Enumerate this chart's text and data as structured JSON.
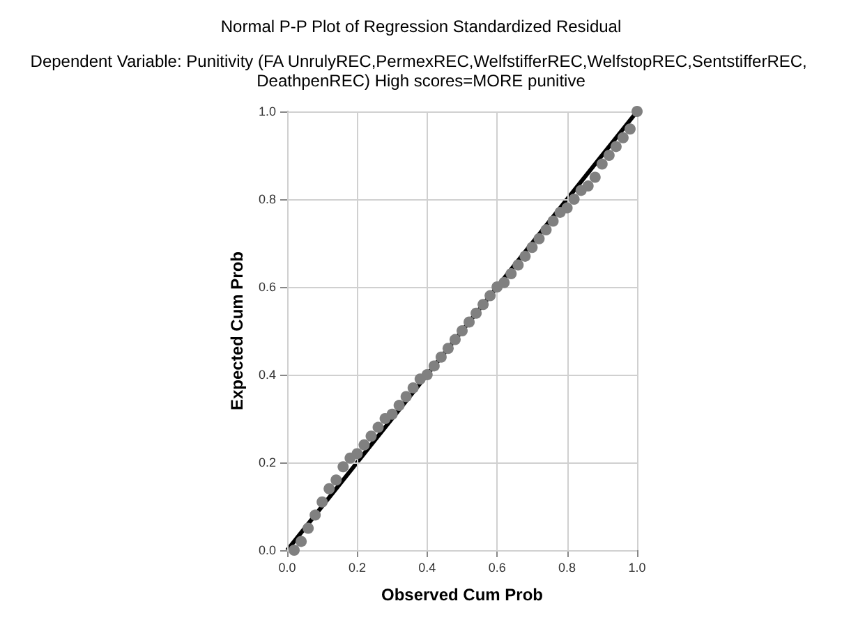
{
  "chart_data": {
    "type": "scatter",
    "title": "Normal P-P Plot of Regression Standardized Residual",
    "subtitle": "Dependent Variable: Punitivity (FA UnrulyREC,PermexREC,WelfstifferREC,WelfstopREC,SentstifferREC, DeathpenREC) High scores=MORE punitive",
    "xlabel": "Observed Cum Prob",
    "ylabel": "Expected Cum Prob",
    "xlim": [
      0,
      1
    ],
    "ylim": [
      0,
      1
    ],
    "xticks": [
      {
        "value": 0,
        "label": "0.0"
      },
      0.2,
      0.4,
      0.6,
      0.8,
      {
        "value": 1,
        "label": "1.0"
      }
    ],
    "yticks": [
      {
        "value": 0,
        "label": "0.0"
      },
      0.2,
      0.4,
      0.6,
      0.8,
      {
        "value": 1,
        "label": "1.0"
      }
    ],
    "grid": true,
    "marker": "circle",
    "series": [
      {
        "color": "#808080",
        "x": [
          0.02,
          0.04,
          0.06,
          0.08,
          0.1,
          0.12,
          0.14,
          0.16,
          0.18,
          0.2,
          0.22,
          0.24,
          0.26,
          0.28,
          0.3,
          0.32,
          0.34,
          0.36,
          0.38,
          0.4,
          0.42,
          0.44,
          0.46,
          0.48,
          0.5,
          0.52,
          0.54,
          0.56,
          0.58,
          0.6,
          0.62,
          0.64,
          0.66,
          0.68,
          0.7,
          0.72,
          0.74,
          0.76,
          0.78,
          0.8,
          0.82,
          0.84,
          0.86,
          0.88,
          0.9,
          0.92,
          0.94,
          0.96,
          0.98,
          1.0
        ],
        "values": [
          0.0,
          0.02,
          0.05,
          0.08,
          0.11,
          0.14,
          0.16,
          0.19,
          0.21,
          0.22,
          0.24,
          0.26,
          0.28,
          0.3,
          0.31,
          0.33,
          0.35,
          0.37,
          0.39,
          0.4,
          0.42,
          0.44,
          0.46,
          0.48,
          0.5,
          0.52,
          0.54,
          0.56,
          0.58,
          0.6,
          0.61,
          0.63,
          0.65,
          0.67,
          0.69,
          0.71,
          0.73,
          0.75,
          0.77,
          0.78,
          0.8,
          0.82,
          0.83,
          0.85,
          0.88,
          0.9,
          0.92,
          0.94,
          0.96,
          1.0
        ]
      },
      {
        "type": "line",
        "color": "#000000",
        "x": [
          0,
          1
        ],
        "values": [
          0,
          1
        ],
        "marker": "none"
      }
    ]
  }
}
